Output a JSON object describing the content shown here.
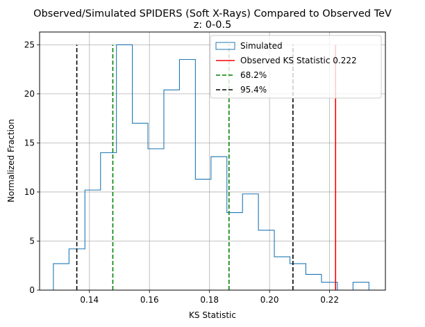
{
  "chart_data": {
    "type": "histogram",
    "title": "Observed/Simulated SPIDERS (Soft X-Rays) Compared to Observed TeV",
    "subtitle": "z: 0-0.5",
    "xlabel": "KS Statistic",
    "ylabel": "Normalized Fraction",
    "xlim": [
      0.1234,
      0.2386
    ],
    "ylim": [
      0,
      26.3
    ],
    "xticks": [
      "0.14",
      "0.16",
      "0.18",
      "0.20",
      "0.22"
    ],
    "yticks": [
      "0",
      "5",
      "10",
      "15",
      "20",
      "25"
    ],
    "grid": true,
    "legend_position": "top-right",
    "histogram": {
      "name": "Simulated",
      "color": "#1f77b4",
      "bin_edges": [
        0.128,
        0.1332,
        0.1385,
        0.1437,
        0.149,
        0.1543,
        0.1595,
        0.1648,
        0.17,
        0.1753,
        0.1805,
        0.1858,
        0.191,
        0.1963,
        0.2016,
        0.2068,
        0.2121,
        0.2173,
        0.2226,
        0.2278,
        0.2331
      ],
      "values": [
        2.7,
        4.2,
        10.2,
        14.0,
        25.0,
        17.0,
        14.4,
        20.4,
        23.5,
        11.3,
        13.6,
        7.9,
        9.8,
        6.1,
        3.4,
        2.7,
        1.6,
        0.8,
        0.0,
        0.8
      ]
    },
    "vertical_lines": [
      {
        "name": "Observed KS Statistic 0.222",
        "x": 0.222,
        "y_max": 25,
        "color": "#ff0000",
        "style": "solid"
      },
      {
        "name": "68.2%",
        "x": 0.1478,
        "y_max": 25,
        "color": "#008000",
        "style": "dashed"
      },
      {
        "name": "68.2%",
        "x": 0.1865,
        "y_max": 25,
        "color": "#008000",
        "style": "dashed"
      },
      {
        "name": "95.4%",
        "x": 0.1358,
        "y_max": 25,
        "color": "#000000",
        "style": "dashed"
      },
      {
        "name": "95.4%",
        "x": 0.2078,
        "y_max": 25,
        "color": "#000000",
        "style": "dashed"
      }
    ],
    "legend": [
      "Simulated",
      "Observed KS Statistic 0.222",
      "68.2%",
      "95.4%"
    ]
  }
}
